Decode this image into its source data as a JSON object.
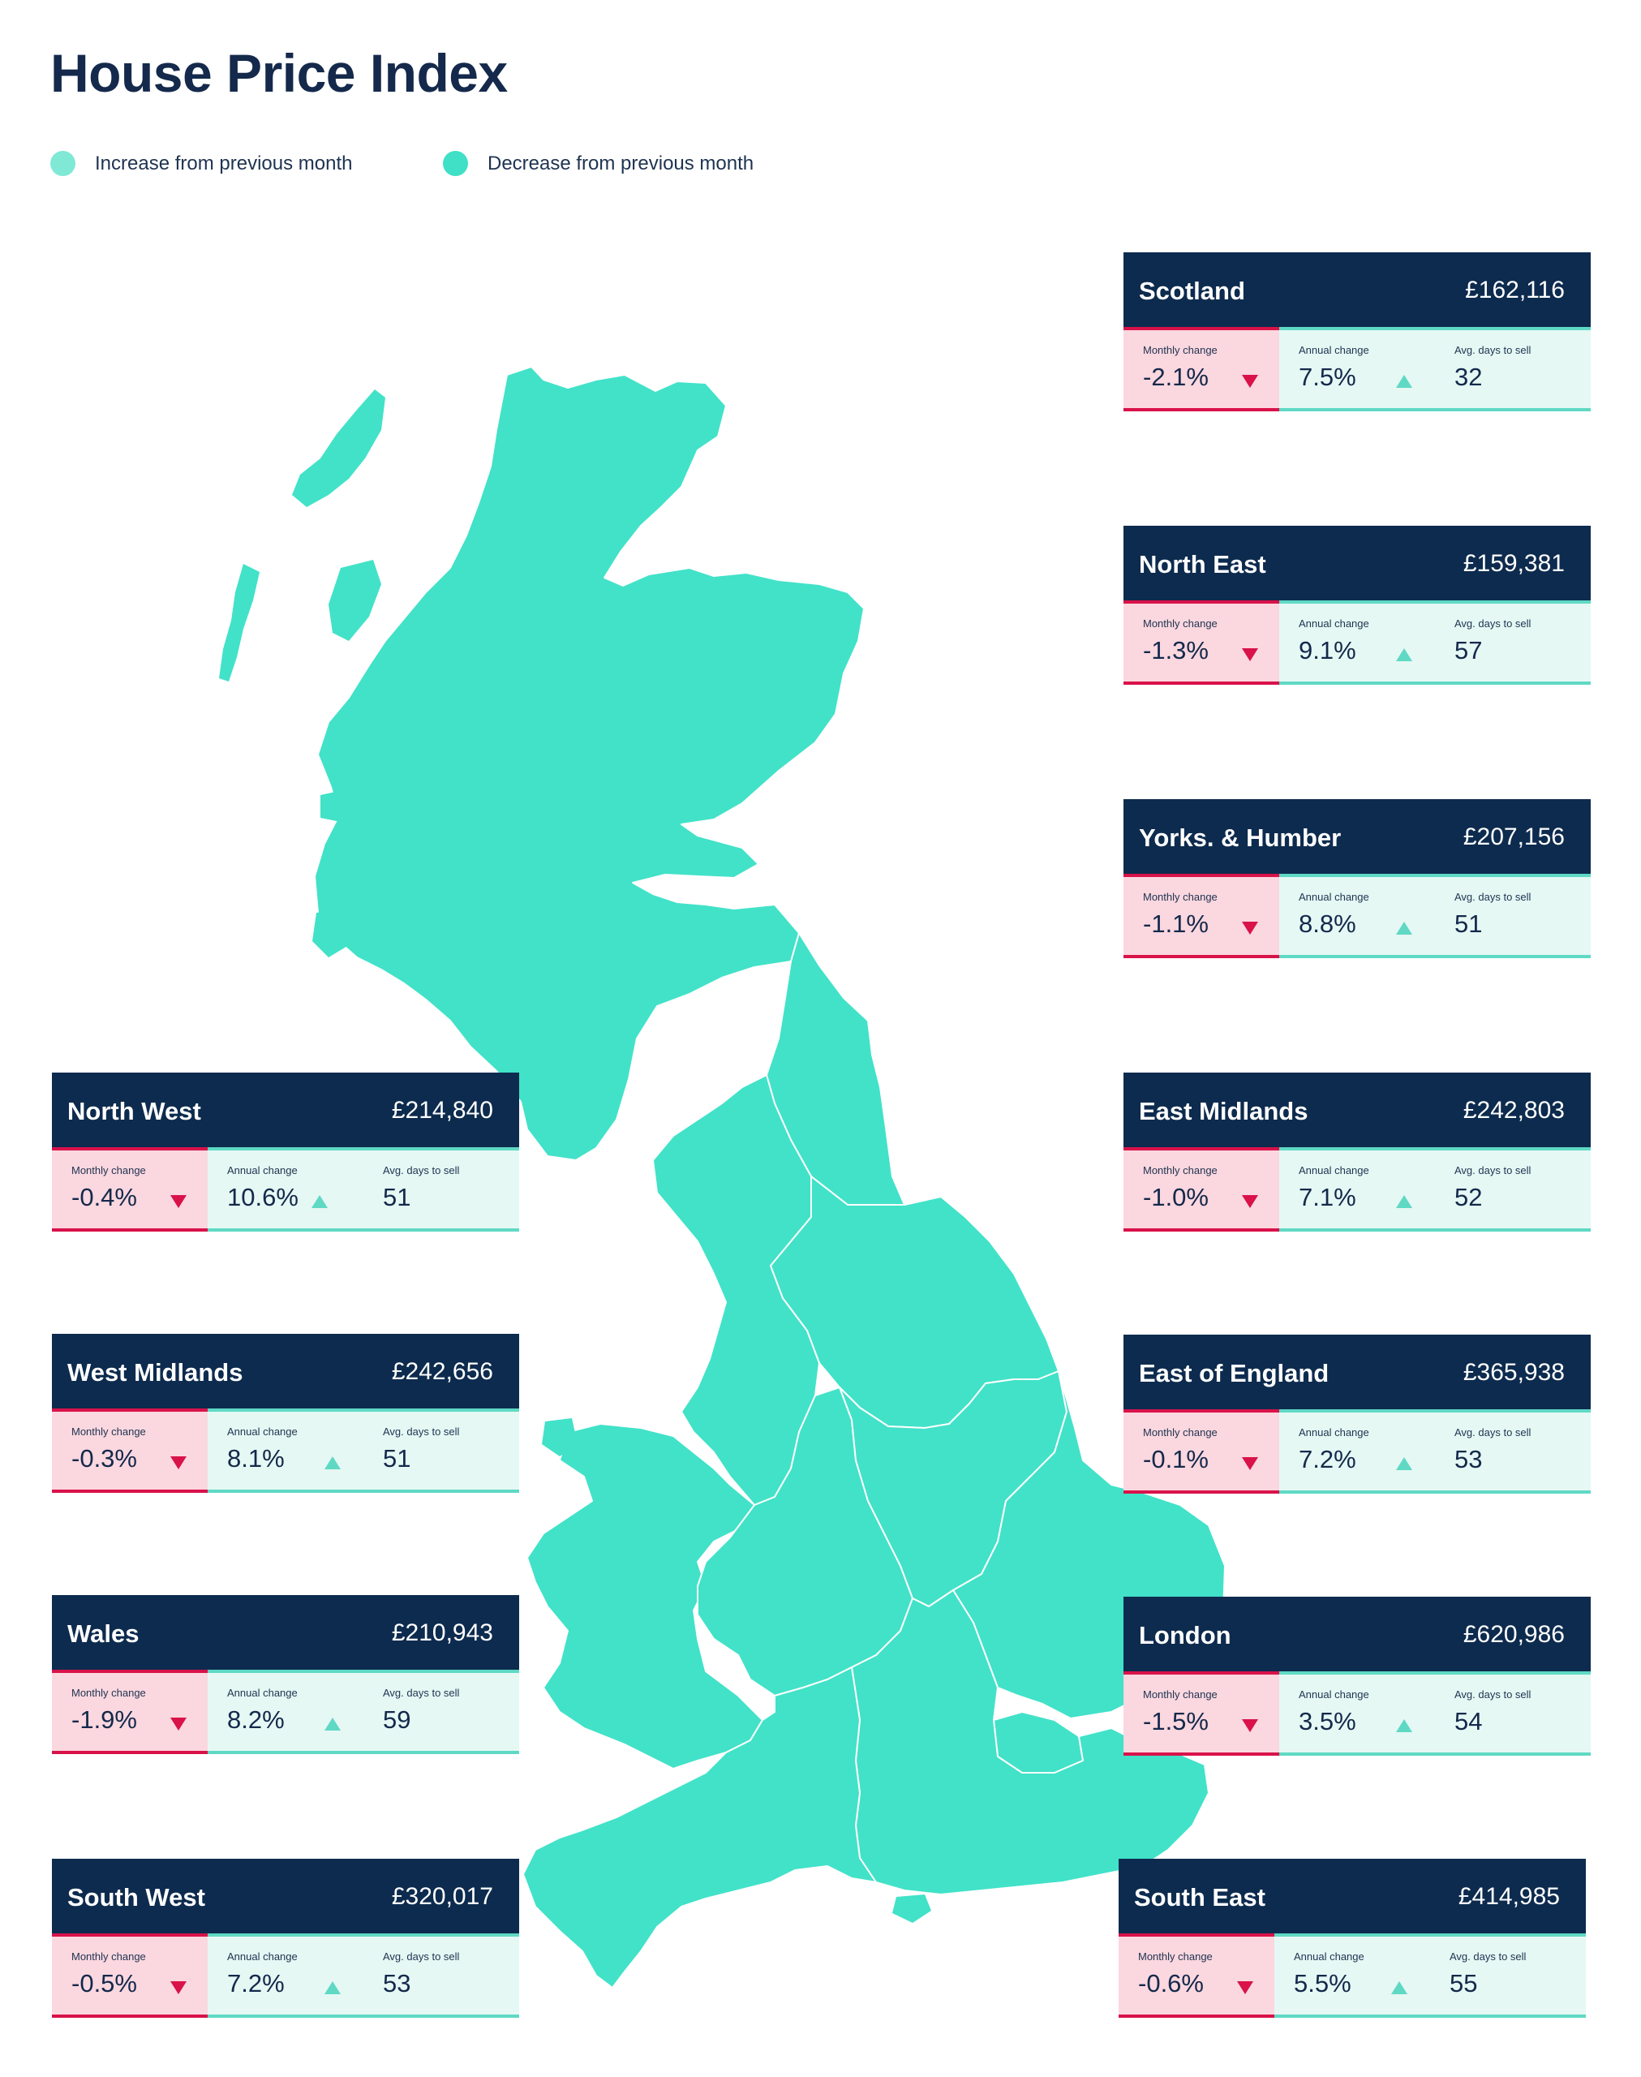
{
  "page": {
    "title": "House Price Index"
  },
  "legend": [
    {
      "label": "Increase from previous month",
      "color": "#7fe9d6"
    },
    {
      "label": "Decrease from previous month",
      "color": "#3fe0c6"
    }
  ],
  "map": {
    "fill": "#41e2c8",
    "border": "#ffffff"
  },
  "labels": {
    "monthly": "Monthly change",
    "annual": "Annual change",
    "days": "Avg. days to sell"
  },
  "regions": {
    "scotland": {
      "name": "Scotland",
      "price": "£162,116",
      "monthly": "-2.1%",
      "annual": "7.5%",
      "days": "32"
    },
    "north_east": {
      "name": "North East",
      "price": "£159,381",
      "monthly": "-1.3%",
      "annual": "9.1%",
      "days": "57"
    },
    "yorks_humber": {
      "name": "Yorks. & Humber",
      "price": "£207,156",
      "monthly": "-1.1%",
      "annual": "8.8%",
      "days": "51"
    },
    "east_midlands": {
      "name": "East Midlands",
      "price": "£242,803",
      "monthly": "-1.0%",
      "annual": "7.1%",
      "days": "52"
    },
    "east_of_england": {
      "name": "East of England",
      "price": "£365,938",
      "monthly": "-0.1%",
      "annual": "7.2%",
      "days": "53"
    },
    "london": {
      "name": "London",
      "price": "£620,986",
      "monthly": "-1.5%",
      "annual": "3.5%",
      "days": "54"
    },
    "south_east": {
      "name": "South East",
      "price": "£414,985",
      "monthly": "-0.6%",
      "annual": "5.5%",
      "days": "55"
    },
    "north_west": {
      "name": "North West",
      "price": "£214,840",
      "monthly": "-0.4%",
      "annual": "10.6%",
      "days": "51"
    },
    "west_midlands": {
      "name": "West Midlands",
      "price": "£242,656",
      "monthly": "-0.3%",
      "annual": "8.1%",
      "days": "51"
    },
    "wales": {
      "name": "Wales",
      "price": "£210,943",
      "monthly": "-1.9%",
      "annual": "8.2%",
      "days": "59"
    },
    "south_west": {
      "name": "South West",
      "price": "£320,017",
      "monthly": "-0.5%",
      "annual": "7.2%",
      "days": "53"
    }
  }
}
